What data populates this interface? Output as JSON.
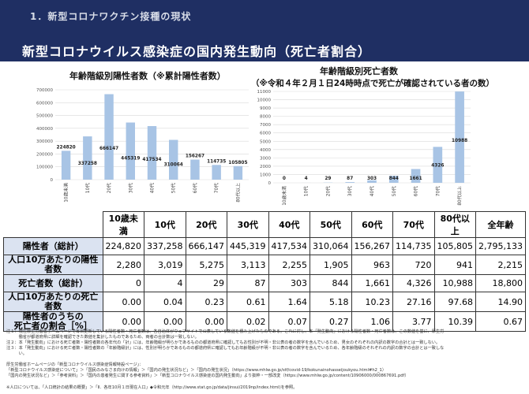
{
  "header": {
    "section": "1．新型コロナワクチン接種の現状",
    "title": "新型コロナウイルス感染症の国内発生動向（死亡者割合）"
  },
  "colors": {
    "bar": "#a8c4e5",
    "header_bg": "#1f2f63",
    "row_header_bg": "#dbe3f1"
  },
  "chart_data": [
    {
      "type": "bar",
      "title": "年齢階級別陽性者数（※累計陽性者数）",
      "categories": [
        "10歳未満",
        "10代",
        "20代",
        "30代",
        "40代",
        "50代",
        "60代",
        "70代",
        "80代以上"
      ],
      "values": [
        224820,
        337258,
        666147,
        445319,
        417534,
        310064,
        156267,
        114735,
        105805
      ],
      "ylim": [
        0,
        700000
      ],
      "yticks": [
        "0",
        "100000",
        "200000",
        "300000",
        "400000",
        "500000",
        "600000",
        "700000"
      ],
      "grid": true
    },
    {
      "type": "bar",
      "title": "年齢階級別死亡者数",
      "subtitle": "（※令和４年２月１日24時時点で死亡が確認されている者の数）",
      "categories": [
        "10歳未満",
        "10代",
        "20代",
        "30代",
        "40代",
        "50代",
        "60代",
        "70代",
        "80代以上"
      ],
      "values": [
        0,
        4,
        29,
        87,
        303,
        844,
        1661,
        4326,
        10988
      ],
      "ylim": [
        0,
        11000
      ],
      "yticks": [
        "0",
        "1000",
        "2000",
        "3000",
        "4000",
        "5000",
        "6000",
        "7000",
        "8000",
        "9000",
        "10000",
        "11000"
      ],
      "grid": true
    }
  ],
  "table": {
    "columns": [
      "10歳未満",
      "10代",
      "20代",
      "30代",
      "40代",
      "50代",
      "60代",
      "70代",
      "80代以上",
      "全年齢"
    ],
    "rows": [
      {
        "label": "陽性者（総計）",
        "values": [
          "224,820",
          "337,258",
          "666,147",
          "445,319",
          "417,534",
          "310,064",
          "156,267",
          "114,735",
          "105,805",
          "2,795,133"
        ]
      },
      {
        "label": "人口10万あたりの陽性者数",
        "values": [
          "2,280",
          "3,019",
          "5,275",
          "3,113",
          "2,255",
          "1,905",
          "963",
          "720",
          "941",
          "2,215"
        ]
      },
      {
        "label": "死亡者数（総計）",
        "values": [
          "0",
          "4",
          "29",
          "87",
          "303",
          "844",
          "1,661",
          "4,326",
          "10,988",
          "18,800"
        ]
      },
      {
        "label": "人口10万あたりの死亡者数",
        "values": [
          "0.00",
          "0.04",
          "0.23",
          "0.61",
          "1.64",
          "5.18",
          "10.23",
          "27.16",
          "97.68",
          "14.90"
        ]
      },
      {
        "label": "陽性者のうちの\n死亡者の割合［%］",
        "values": [
          "0.00",
          "0.00",
          "0.00",
          "0.02",
          "0.07",
          "0.27",
          "1.06",
          "3.77",
          "10.39",
          "0.67"
        ]
      }
    ]
  },
  "notes": [
    "注１：現在厚生労働省ホームページで毎日更新している陽性者数・死亡者数は、各自治体がウェブサイトで公表している数値を積み上げたものである。これに対し、本「発生動向」における陽性者数・死亡者数は、この数値を基に、厚生労",
    "　　　働省が都道府県に詳細を確認できた数値を集計したものであるため、両者の合計数は一致しない。",
    "注２：本「発生動向」における死亡者数・陽性者数の各年代の「計」には、年齢階級が明らかであるものの都道府県に確認してもお性別が不明・非公表の者の数字を含んでいるため、男女のそれぞれの内訳の数字の合計とは一致しない。",
    "注３：本「発生動向」における死亡者数・陽性者数の「年齢階級計」には、性別が明らかであるものの都道府県に確認してもお年齢階級が不明・非公表の者の数字を含んでいるため、各年齢階級のそれぞれの内訳の数字の合計とは一致しな",
    "　　　い。"
  ],
  "sources": [
    "厚生労働省ホームページの「新型コロナウイルス感染症情報特設ページ」：",
    "「新型コロナウイルス感染症について」＞「国民のみなさま向けの情報」＞「国内の発生状況など」＞「国内の発生状況」（https://www.mhlw.go.jp/stf/covid-19/kokunainohasseijoukyou.html#h2_1）",
    "「国内の発生状況など」＞「参考資料」＞「国内の患者発生に関する参考資料」＞「新型コロナウイルス感染症の国内発生動向」より抜粋・一部改変（https://www.mhlw.go.jp/content/10906000/000867691.pdf）"
  ],
  "footnote": "※人口については、「人口統計の結果の概要」＞「Ⅱ．各年10月１日現在人口」◆令和元年（http://www.stat.go.jp/data/jinsui/2019np/index.html)を参照。"
}
